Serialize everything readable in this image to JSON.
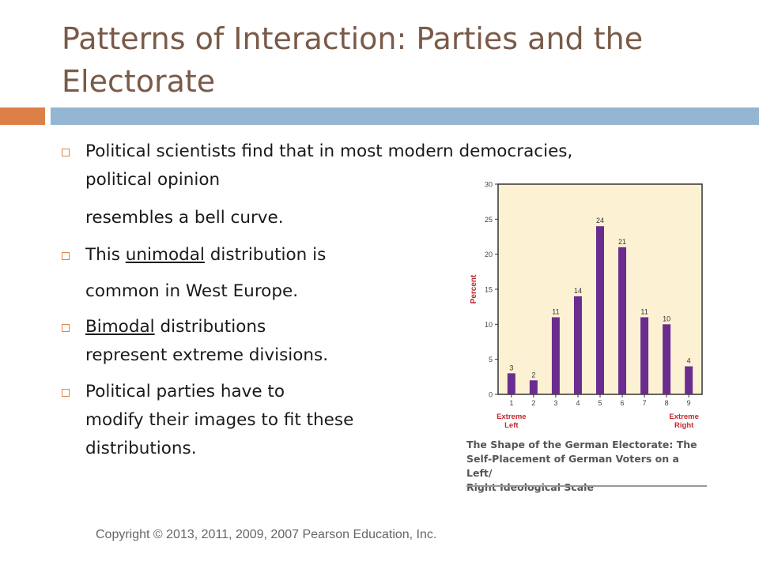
{
  "slide": {
    "title_line1": "Patterns of Interaction: Parties and the",
    "title_line2": "Electorate",
    "colors": {
      "title": "#7a5a48",
      "accent_orange": "#dd8047",
      "accent_blue": "#94b6d2"
    }
  },
  "bullets": {
    "b1_line1": "Political scientists find that in most modern democracies,",
    "b1_line2": "political opinion",
    "b1_line3": "resembles a bell curve.",
    "b2_before": "This ",
    "b2_underlined": "unimodal",
    "b2_after": " distribution is",
    "b2_line2": "common in West Europe.",
    "b3_underlined": "Bimodal",
    "b3_after": " distributions",
    "b3_line2": "represent extreme divisions.",
    "b4_line1": "Political parties have to",
    "b4_line2": "modify their images to fit these",
    "b4_line3": "distributions."
  },
  "footer": {
    "copyright": "Copyright © 2013, 2011, 2009, 2007 Pearson Education, Inc."
  },
  "chart_data": {
    "type": "bar",
    "categories": [
      "1",
      "2",
      "3",
      "4",
      "5",
      "6",
      "7",
      "8",
      "9"
    ],
    "values": [
      3,
      2,
      11,
      14,
      24,
      21,
      11,
      10,
      4
    ],
    "title": "The Shape of the German Electorate: The Self-Placement of German Voters on a Left/ Right Ideological Scale",
    "caption_lines": [
      "The Shape of the German Electorate: The",
      "Self-Placement of German Voters on a Left/",
      "Right Ideological Scale"
    ],
    "xlabel": "",
    "ylabel": "Percent",
    "ylim": [
      0,
      30
    ],
    "yticks": [
      "0",
      "5",
      "10",
      "15",
      "20",
      "25",
      "30"
    ],
    "left_label": [
      "Extreme",
      "Left"
    ],
    "right_label": [
      "Extreme",
      "Right"
    ],
    "grid": false,
    "colors": {
      "bar": "#6b2c8f",
      "plot_bg": "#fdf1d3",
      "axis_text": "#444444",
      "extreme_label": "#c0282d",
      "ylabel": "#c0282d"
    }
  }
}
